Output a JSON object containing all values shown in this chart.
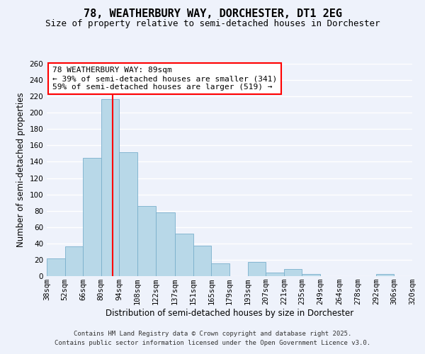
{
  "title": "78, WEATHERBURY WAY, DORCHESTER, DT1 2EG",
  "subtitle": "Size of property relative to semi-detached houses in Dorchester",
  "xlabel": "Distribution of semi-detached houses by size in Dorchester",
  "ylabel": "Number of semi-detached properties",
  "bin_labels": [
    "38sqm",
    "52sqm",
    "66sqm",
    "80sqm",
    "94sqm",
    "108sqm",
    "122sqm",
    "137sqm",
    "151sqm",
    "165sqm",
    "179sqm",
    "193sqm",
    "207sqm",
    "221sqm",
    "235sqm",
    "249sqm",
    "264sqm",
    "278sqm",
    "292sqm",
    "306sqm",
    "320sqm"
  ],
  "bar_heights": [
    22,
    36,
    145,
    217,
    152,
    86,
    78,
    52,
    37,
    16,
    0,
    17,
    4,
    9,
    3,
    0,
    0,
    0,
    3,
    0,
    0
  ],
  "bar_color": "#b8d8e8",
  "bar_edge_color": "#7ab0cc",
  "ylim": [
    0,
    260
  ],
  "yticks": [
    0,
    20,
    40,
    60,
    80,
    100,
    120,
    140,
    160,
    180,
    200,
    220,
    240,
    260
  ],
  "bin_edges": [
    38,
    52,
    66,
    80,
    94,
    108,
    122,
    137,
    151,
    165,
    179,
    193,
    207,
    221,
    235,
    249,
    264,
    278,
    292,
    306,
    320
  ],
  "property_size": 89,
  "annotation_title": "78 WEATHERBURY WAY: 89sqm",
  "annotation_line1": "← 39% of semi-detached houses are smaller (341)",
  "annotation_line2": "59% of semi-detached houses are larger (519) →",
  "footer1": "Contains HM Land Registry data © Crown copyright and database right 2025.",
  "footer2": "Contains public sector information licensed under the Open Government Licence v3.0.",
  "background_color": "#eef2fb",
  "grid_color": "#ffffff",
  "title_fontsize": 11,
  "subtitle_fontsize": 9,
  "axis_label_fontsize": 8.5,
  "tick_fontsize": 7.5,
  "annotation_fontsize": 8,
  "footer_fontsize": 6.5
}
